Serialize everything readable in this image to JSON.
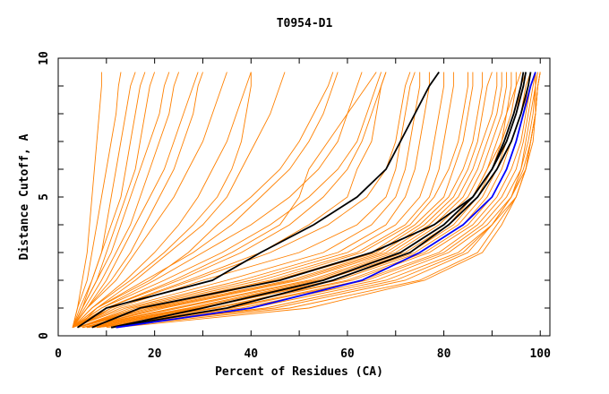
{
  "chart_data": {
    "type": "line",
    "title": "T0954-D1",
    "xlabel": "Percent of Residues (CA)",
    "ylabel": "Distance Cutoff, A",
    "xlim": [
      0,
      102
    ],
    "ylim": [
      0,
      10
    ],
    "xticks": [
      "0",
      "20",
      "40",
      "60",
      "80",
      "100"
    ],
    "xtick_values": [
      0,
      20,
      40,
      60,
      80,
      100
    ],
    "yticks": [
      "0",
      "5",
      "10"
    ],
    "ytick_values": [
      0,
      5,
      10
    ],
    "grid": false,
    "y_levels": [
      0.3,
      1,
      2,
      3,
      4,
      5,
      6,
      7,
      8,
      9,
      9.5
    ],
    "colors": {
      "other": "#ff8000",
      "highlight": "#000000",
      "best": "#0000ff"
    },
    "series_other": [
      [
        3,
        4,
        5,
        6,
        6.5,
        7,
        7.5,
        8,
        8.5,
        9,
        9
      ],
      [
        3,
        4,
        6,
        7,
        8,
        9,
        10,
        11,
        12,
        12.5,
        13
      ],
      [
        3,
        4.5,
        7,
        9,
        10,
        11,
        12,
        13,
        14,
        15,
        16
      ],
      [
        3,
        5,
        7,
        9,
        11,
        13,
        14,
        15,
        16,
        17,
        18
      ],
      [
        3,
        5,
        8,
        10,
        12,
        14,
        16,
        17,
        18,
        19,
        20
      ],
      [
        3,
        5,
        8,
        11,
        13,
        15,
        17,
        19,
        21,
        22,
        23
      ],
      [
        3,
        5.5,
        9,
        12,
        15,
        17,
        19,
        21,
        23,
        24,
        25
      ],
      [
        3,
        6,
        10,
        13,
        16,
        19,
        22,
        24,
        26,
        28,
        29
      ],
      [
        3,
        6,
        11,
        15,
        18,
        21,
        24,
        26,
        28,
        29,
        30
      ],
      [
        3,
        6,
        12,
        16,
        20,
        24,
        27,
        30,
        32,
        34,
        35
      ],
      [
        3,
        7,
        14,
        20,
        25,
        29,
        32,
        35,
        37,
        39,
        40
      ],
      [
        3,
        7,
        15,
        22,
        28,
        33,
        36,
        38,
        39,
        40,
        40
      ],
      [
        4,
        8,
        16,
        23,
        30,
        35,
        38,
        41,
        44,
        46,
        47
      ],
      [
        3,
        8,
        18,
        28,
        36,
        42,
        48,
        52,
        55,
        57,
        58
      ],
      [
        3,
        8,
        19,
        27,
        33,
        40,
        46,
        50,
        53,
        56,
        57
      ],
      [
        3,
        9,
        20,
        30,
        40,
        48,
        54,
        58,
        60,
        62,
        63
      ],
      [
        3,
        9,
        22,
        34,
        44,
        52,
        58,
        62,
        64,
        66,
        67
      ],
      [
        3,
        10,
        25,
        38,
        48,
        55,
        60,
        63,
        65,
        67,
        68
      ],
      [
        4,
        11,
        27,
        42,
        52,
        60,
        62,
        65,
        66,
        67,
        68
      ],
      [
        3,
        10,
        24,
        36,
        46,
        50,
        52,
        56,
        60,
        64,
        66
      ],
      [
        3,
        11,
        28,
        44,
        56,
        64,
        68,
        70,
        71,
        72,
        73
      ],
      [
        3,
        12,
        30,
        50,
        62,
        68,
        70,
        71,
        72,
        73,
        74
      ],
      [
        3,
        13,
        35,
        55,
        65,
        70,
        72,
        73,
        74,
        75,
        75
      ],
      [
        3,
        14,
        38,
        58,
        68,
        72,
        74,
        75,
        76,
        77,
        77
      ],
      [
        4,
        15,
        40,
        60,
        70,
        75,
        77,
        78,
        79,
        80,
        80
      ],
      [
        4,
        16,
        42,
        62,
        72,
        77,
        79,
        80,
        81,
        82,
        82
      ],
      [
        4,
        17,
        44,
        63,
        73,
        78,
        81,
        83,
        84,
        85,
        85
      ],
      [
        4,
        18,
        45,
        65,
        74,
        80,
        82,
        84,
        85,
        86,
        86
      ],
      [
        4,
        19,
        46,
        66,
        75,
        81,
        84,
        86,
        87,
        88,
        88
      ],
      [
        4,
        20,
        48,
        67,
        76,
        82,
        85,
        87,
        88,
        89,
        90
      ],
      [
        5,
        21,
        49,
        68,
        77,
        83,
        86,
        88,
        90,
        91,
        91
      ],
      [
        5,
        22,
        50,
        69,
        78,
        84,
        87,
        89,
        91,
        92,
        92
      ],
      [
        5,
        24,
        52,
        70,
        79,
        85,
        88,
        90,
        92,
        93,
        93
      ],
      [
        5,
        25,
        53,
        71,
        80,
        86,
        89,
        91,
        93,
        94,
        94
      ],
      [
        5,
        27,
        54,
        72,
        81,
        86,
        89,
        92,
        93,
        95,
        95
      ],
      [
        5,
        28,
        55,
        73,
        82,
        87,
        90,
        92,
        94,
        95,
        96
      ],
      [
        6,
        29,
        57,
        74,
        83,
        88,
        91,
        93,
        95,
        96,
        97
      ],
      [
        6,
        30,
        58,
        75,
        84,
        89,
        92,
        94,
        96,
        97,
        98
      ],
      [
        6,
        32,
        60,
        76,
        85,
        90,
        93,
        95,
        96.5,
        97.5,
        98
      ],
      [
        6,
        33,
        61,
        77,
        86,
        91,
        94,
        96,
        97,
        98,
        99
      ],
      [
        7,
        35,
        63,
        79,
        87,
        92,
        95,
        96.5,
        97.5,
        98.5,
        99
      ],
      [
        7,
        36,
        64,
        80,
        88,
        93,
        96,
        97,
        98,
        99,
        99
      ],
      [
        7,
        38,
        66,
        81,
        89,
        94,
        96,
        97.5,
        98.5,
        99,
        99.5
      ],
      [
        8,
        40,
        68,
        83,
        90,
        95,
        97,
        98,
        99,
        99.5,
        100
      ],
      [
        8,
        43,
        70,
        84,
        90,
        94,
        96.5,
        98,
        99,
        99.5,
        100
      ],
      [
        8,
        45,
        72,
        85,
        90,
        94,
        97,
        98.5,
        99,
        99.5,
        100
      ],
      [
        10,
        48,
        75,
        87,
        91,
        95,
        97,
        98,
        99,
        99,
        99
      ],
      [
        12,
        52,
        76,
        88,
        92,
        95,
        97,
        98,
        99,
        99.5,
        100
      ]
    ],
    "series_highlight": [
      [
        4,
        10,
        32,
        42,
        53,
        62,
        68,
        71,
        74,
        77,
        79
      ],
      [
        7,
        17,
        46,
        65,
        78,
        86,
        90,
        93,
        95,
        96.5,
        97
      ],
      [
        11,
        30,
        55,
        71,
        80,
        86,
        90,
        92.5,
        94.5,
        96,
        96.5
      ],
      [
        11,
        35,
        57,
        73,
        81,
        87,
        91,
        94,
        96,
        97.5,
        98
      ]
    ],
    "series_best": [
      12,
      40,
      63,
      75,
      84,
      90,
      93,
      95,
      96.5,
      98,
      99
    ]
  }
}
